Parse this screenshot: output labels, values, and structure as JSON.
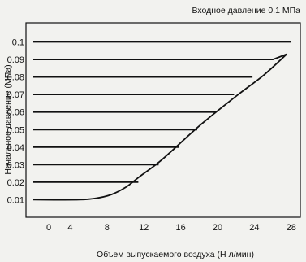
{
  "chart_data": {
    "type": "line",
    "title": "Входное давление 0.1 МПа",
    "xlabel": "Объем выпускаемого воздуха (Н л/мин)",
    "ylabel": "Начальное давление (МПа)",
    "xlim": [
      0,
      30
    ],
    "ylim": [
      0,
      0.11
    ],
    "xticks": [
      0,
      4,
      8,
      12,
      16,
      20,
      24,
      28
    ],
    "yticks": [
      0.01,
      0.02,
      0.03,
      0.04,
      0.05,
      0.06,
      0.07,
      0.08,
      0.09,
      0.1
    ],
    "ytick_labels": [
      "0.01",
      "0.02",
      "0.03",
      "0.04",
      "0.05",
      "0.06",
      "0.07",
      "0.08",
      "0.09",
      "0.1"
    ],
    "grid": false,
    "series": [
      {
        "values": [
          [
            0,
            0.1
          ],
          [
            28,
            0.1
          ]
        ]
      },
      {
        "values": [
          [
            0,
            0.09
          ],
          [
            26,
            0.09
          ],
          [
            27.5,
            0.093
          ]
        ]
      },
      {
        "values": [
          [
            0,
            0.08
          ],
          [
            23.8,
            0.08
          ]
        ]
      },
      {
        "values": [
          [
            0,
            0.07
          ],
          [
            21.8,
            0.07
          ]
        ]
      },
      {
        "values": [
          [
            0,
            0.06
          ],
          [
            19.8,
            0.06
          ]
        ]
      },
      {
        "values": [
          [
            0,
            0.05
          ],
          [
            17.8,
            0.05
          ]
        ]
      },
      {
        "values": [
          [
            0,
            0.04
          ],
          [
            15.8,
            0.04
          ]
        ]
      },
      {
        "values": [
          [
            0,
            0.03
          ],
          [
            13.6,
            0.03
          ]
        ]
      },
      {
        "values": [
          [
            0,
            0.02
          ],
          [
            11.4,
            0.02
          ]
        ]
      },
      {
        "values": [
          [
            0,
            0.01
          ],
          [
            5,
            0.01
          ],
          [
            7,
            0.011
          ],
          [
            8.5,
            0.013
          ],
          [
            10,
            0.017
          ],
          [
            11.5,
            0.023
          ],
          [
            14,
            0.033
          ],
          [
            18,
            0.052
          ],
          [
            22,
            0.069
          ],
          [
            25,
            0.081
          ],
          [
            27.5,
            0.093
          ]
        ]
      }
    ]
  }
}
